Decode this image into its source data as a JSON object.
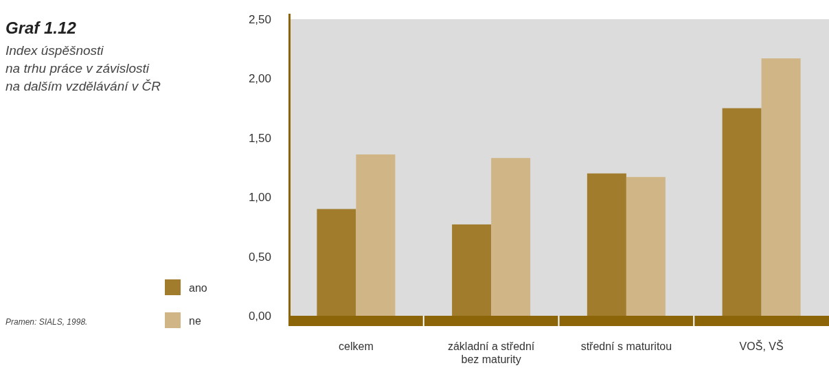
{
  "chart_data": {
    "type": "bar",
    "title": "Graf 1.12",
    "subtitle": "Index úspěšnosti\nna trhu práce v závislosti\nna dalším vzdělávání v ČR",
    "categories": [
      "celkem",
      "základní a střední bez maturity",
      "střední s maturitou",
      "VOŠ, VŠ"
    ],
    "series": [
      {
        "name": "ano",
        "color": "#a07c2c",
        "values": [
          0.9,
          0.77,
          1.2,
          1.75
        ]
      },
      {
        "name": "ne",
        "color": "#d0b687",
        "values": [
          1.36,
          1.33,
          1.17,
          2.17
        ]
      }
    ],
    "ylim": [
      0,
      2.5
    ],
    "yticks": [
      {
        "value": 0,
        "label": "0,00"
      },
      {
        "value": 0.5,
        "label": "0,50"
      },
      {
        "value": 1,
        "label": "1,00"
      },
      {
        "value": 1.5,
        "label": "1,50"
      },
      {
        "value": 2,
        "label": "2,00"
      },
      {
        "value": 2.5,
        "label": "2,50"
      }
    ],
    "legend": "left",
    "annotations": [
      "Pramen: SIALS, 1998."
    ]
  }
}
